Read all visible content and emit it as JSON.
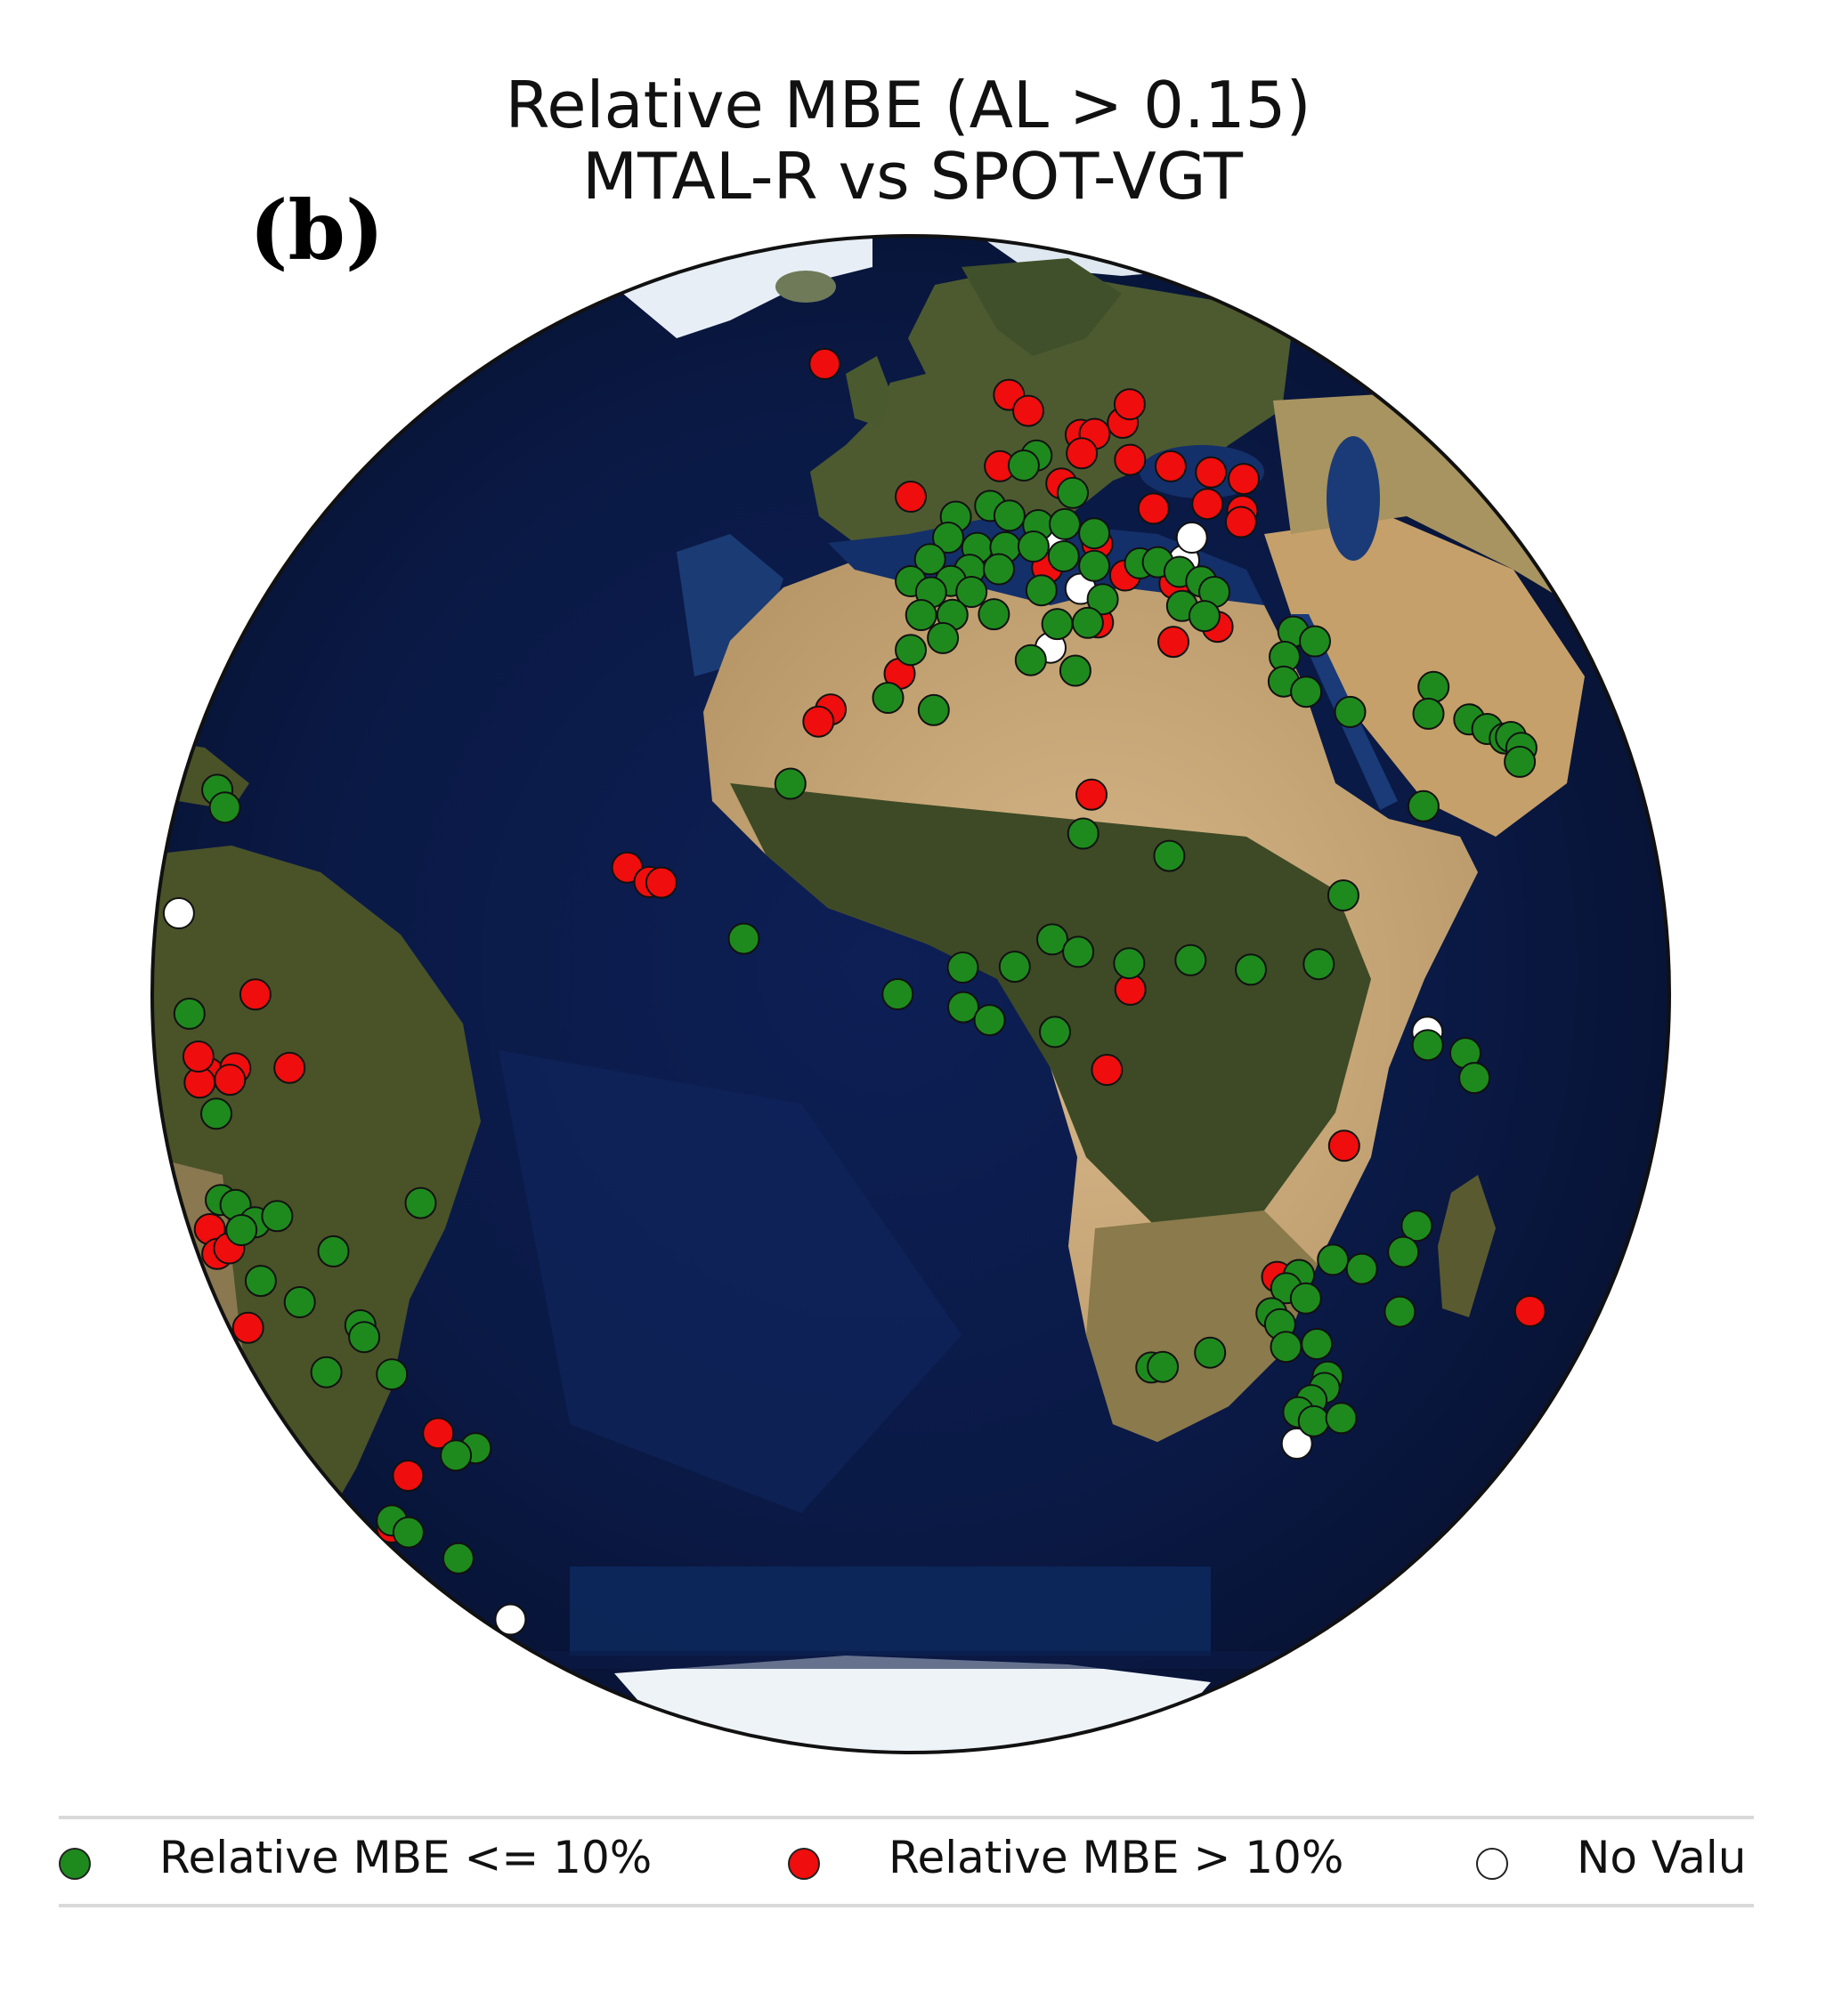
{
  "figure": {
    "panel_label": "(b)",
    "title_line1": "Relative MBE (AL > 0.15)",
    "title_line2": "MTAL-R vs SPOT-VGT"
  },
  "colors": {
    "green": "#1e8a1e",
    "red": "#f00d0d",
    "white": "#ffffff",
    "ocean_deep": "#07153a",
    "ocean_shelf": "#2d5a9a",
    "land_desert": "#c9a877",
    "land_forest": "#3c4a24"
  },
  "legend": [
    {
      "id": "green",
      "label": "Relative MBE <= 10%",
      "color": "#1e8a1e"
    },
    {
      "id": "red",
      "label": "Relative MBE > 10%",
      "color": "#f00d0d"
    },
    {
      "id": "white",
      "label": "No Valu",
      "color": "#ffffff"
    }
  ],
  "sites": {
    "green": [
      [
        53,
        11
      ],
      [
        52,
        9
      ],
      [
        49,
        14
      ],
      [
        48,
        4
      ],
      [
        47,
        0
      ],
      [
        47,
        6
      ],
      [
        46,
        9
      ],
      [
        46,
        12
      ],
      [
        45,
        15
      ],
      [
        45,
        -1
      ],
      [
        44,
        2
      ],
      [
        44,
        5
      ],
      [
        44,
        8
      ],
      [
        43,
        11
      ],
      [
        43,
        -3
      ],
      [
        42,
        1
      ],
      [
        42,
        4
      ],
      [
        42,
        14
      ],
      [
        41,
        -5
      ],
      [
        41,
        -1
      ],
      [
        40,
        -3
      ],
      [
        40,
        1
      ],
      [
        40,
        8
      ],
      [
        39,
        14
      ],
      [
        38,
        -4
      ],
      [
        38,
        -1
      ],
      [
        38,
        3
      ],
      [
        37,
        9
      ],
      [
        37,
        12
      ],
      [
        36,
        -2
      ],
      [
        35,
        -5
      ],
      [
        34,
        6
      ],
      [
        33,
        10
      ],
      [
        31,
        -7
      ],
      [
        30,
        -3
      ],
      [
        42,
        19
      ],
      [
        42,
        21
      ],
      [
        41,
        23
      ],
      [
        40,
        25
      ],
      [
        39,
        26
      ],
      [
        38,
        22
      ],
      [
        37,
        24
      ],
      [
        35,
        33
      ],
      [
        34,
        35
      ],
      [
        33,
        31
      ],
      [
        31,
        30
      ],
      [
        30,
        32
      ],
      [
        28,
        36
      ],
      [
        29,
        47
      ],
      [
        27,
        45
      ],
      [
        26,
        50
      ],
      [
        25,
        52
      ],
      [
        24,
        54
      ],
      [
        24,
        55
      ],
      [
        23,
        56
      ],
      [
        22,
        55
      ],
      [
        20,
        41
      ],
      [
        18,
        16
      ],
      [
        14,
        31
      ],
      [
        24,
        -15
      ],
      [
        20,
        9
      ],
      [
        12,
        -18
      ],
      [
        12,
        6
      ],
      [
        11,
        8
      ],
      [
        10,
        3
      ],
      [
        10,
        -1
      ],
      [
        10,
        12
      ],
      [
        10,
        17
      ],
      [
        9,
        22
      ],
      [
        9,
        28
      ],
      [
        8,
        -6
      ],
      [
        7,
        -1
      ],
      [
        6,
        1
      ],
      [
        5,
        6
      ],
      [
        2,
        38
      ],
      [
        1,
        42
      ],
      [
        -1,
        43
      ],
      [
        -12,
        38
      ],
      [
        -14,
        37
      ],
      [
        -14,
        30
      ],
      [
        -15,
        27
      ],
      [
        -15,
        33
      ],
      [
        -16,
        26
      ],
      [
        -17,
        28
      ],
      [
        -18,
        25
      ],
      [
        -19,
        26
      ],
      [
        -19,
        38
      ],
      [
        -21,
        20
      ],
      [
        -21,
        27
      ],
      [
        -21,
        30
      ],
      [
        -22,
        15
      ],
      [
        -22,
        16
      ],
      [
        -24,
        32
      ],
      [
        -25,
        32
      ],
      [
        -26,
        31
      ],
      [
        -27,
        30
      ],
      [
        -28,
        32
      ],
      [
        -28,
        35
      ],
      [
        18,
        -79
      ],
      [
        17,
        -76
      ],
      [
        1,
        -77
      ],
      [
        -6,
        -72
      ],
      [
        -13,
        -74
      ],
      [
        -13,
        -71
      ],
      [
        -14,
        -68
      ],
      [
        -15,
        -71
      ],
      [
        -13,
        -64
      ],
      [
        -15,
        -57
      ],
      [
        -10,
        -46
      ],
      [
        -19,
        -70
      ],
      [
        -20,
        -64
      ],
      [
        -21,
        -56
      ],
      [
        -22,
        -56
      ],
      [
        -25,
        -54
      ],
      [
        -26,
        -64
      ],
      [
        -31,
        -47
      ],
      [
        -32,
        -50
      ],
      [
        -41,
        -70
      ],
      [
        -42,
        -68
      ],
      [
        -44,
        -61
      ]
    ],
    "red": [
      [
        64,
        -20
      ],
      [
        60,
        10
      ],
      [
        58,
        12
      ],
      [
        55,
        18
      ],
      [
        56,
        25
      ],
      [
        58,
        28
      ],
      [
        55,
        20
      ],
      [
        53,
        17
      ],
      [
        52,
        23
      ],
      [
        51,
        28
      ],
      [
        50,
        33
      ],
      [
        49,
        37
      ],
      [
        49,
        -5
      ],
      [
        52,
        6
      ],
      [
        50,
        13
      ],
      [
        47,
        23
      ],
      [
        47,
        30
      ],
      [
        46,
        34
      ],
      [
        45,
        33
      ],
      [
        44,
        15
      ],
      [
        42,
        9
      ],
      [
        41,
        17
      ],
      [
        40,
        22
      ],
      [
        37,
        13
      ],
      [
        36,
        25
      ],
      [
        35,
        20
      ],
      [
        33,
        -6
      ],
      [
        30,
        -12
      ],
      [
        29,
        -13
      ],
      [
        23,
        10
      ],
      [
        17,
        -28
      ],
      [
        16,
        -26
      ],
      [
        16,
        -25
      ],
      [
        8,
        12
      ],
      [
        2,
        10
      ],
      [
        -5,
        30
      ],
      [
        -15,
        25
      ],
      [
        -15,
        27
      ],
      [
        -28,
        32
      ],
      [
        -21,
        56
      ],
      [
        4,
        -65
      ],
      [
        -3,
        -73
      ],
      [
        -2,
        -68
      ],
      [
        -1,
        -60
      ],
      [
        -3,
        -69
      ],
      [
        -4,
        -75
      ],
      [
        -2,
        -75
      ],
      [
        -16,
        -79
      ],
      [
        -18,
        -79
      ],
      [
        -17,
        -75
      ],
      [
        -30,
        -51
      ],
      [
        -24,
        -78
      ],
      [
        -35,
        -59
      ],
      [
        -42,
        -72
      ]
    ],
    "white": [
      [
        44,
        10
      ],
      [
        42,
        24
      ],
      [
        44,
        26
      ],
      [
        40,
        12
      ],
      [
        35,
        8
      ],
      [
        3,
        38
      ],
      [
        -30,
        31
      ],
      [
        -52,
        -64
      ],
      [
        8,
        -82
      ]
    ]
  }
}
